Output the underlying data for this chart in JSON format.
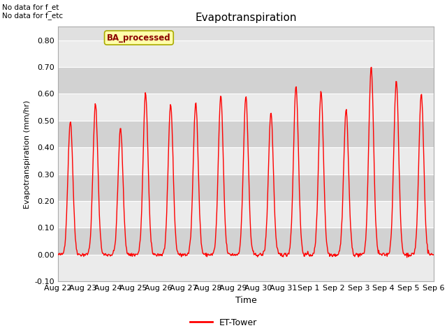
{
  "title": "Evapotranspiration",
  "xlabel": "Time",
  "ylabel": "Evapotranspiration (mm/hr)",
  "ylim": [
    -0.1,
    0.85
  ],
  "yticks": [
    -0.1,
    0.0,
    0.1,
    0.2,
    0.3,
    0.4,
    0.5,
    0.6,
    0.7,
    0.8
  ],
  "ytick_labels": [
    "-0.10",
    "0.00",
    "0.10",
    "0.20",
    "0.30",
    "0.40",
    "0.50",
    "0.60",
    "0.70",
    "0.80"
  ],
  "line_color": "#ff0000",
  "line_width": 1.0,
  "background_color": "#ffffff",
  "plot_bg_color": "#e0e0e0",
  "band_light_color": "#ebebeb",
  "band_dark_color": "#d2d2d2",
  "text_top_left": "No data for f_et\nNo data for f_etc",
  "legend_label": "ET-Tower",
  "annotation_label": "BA_processed",
  "x_tick_labels": [
    "Aug 22",
    "Aug 23",
    "Aug 24",
    "Aug 25",
    "Aug 26",
    "Aug 27",
    "Aug 28",
    "Aug 29",
    "Aug 30",
    "Aug 31",
    "Sep 1",
    "Sep 2",
    "Sep 3",
    "Sep 4",
    "Sep 5",
    "Sep 6"
  ],
  "num_days": 15,
  "daily_peaks": [
    0.5,
    0.56,
    0.47,
    0.6,
    0.56,
    0.57,
    0.59,
    0.59,
    0.53,
    0.63,
    0.61,
    0.54,
    0.7,
    0.65,
    0.6
  ],
  "sigma": 0.1,
  "annotation_color": "#8b0000",
  "annotation_bg": "#ffffaa",
  "annotation_edge": "#aaaa00"
}
